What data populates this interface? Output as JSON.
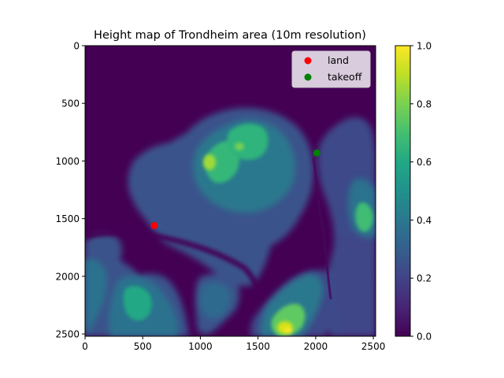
{
  "chart_data": {
    "type": "heatmap",
    "title": "Height map of Trondheim area (10m resolution)",
    "xlabel": "",
    "ylabel": "",
    "xlim": [
      0,
      2520
    ],
    "ylim": [
      2520,
      0
    ],
    "x_ticks": [
      0,
      500,
      1000,
      1500,
      2000,
      2500
    ],
    "y_ticks": [
      0,
      500,
      1000,
      1500,
      2000,
      2500
    ],
    "colorbar": {
      "colormap": "viridis",
      "range": [
        0.0,
        1.0
      ],
      "ticks": [
        "0.0",
        "0.2",
        "0.4",
        "0.6",
        "0.8",
        "1.0"
      ]
    },
    "grid": false,
    "legend_position": "top-right",
    "points": [
      {
        "name": "land",
        "x": 600,
        "y": 1560,
        "color": "#ff0000"
      },
      {
        "name": "takeoff",
        "x": 2010,
        "y": 930,
        "color": "#008000"
      }
    ]
  }
}
